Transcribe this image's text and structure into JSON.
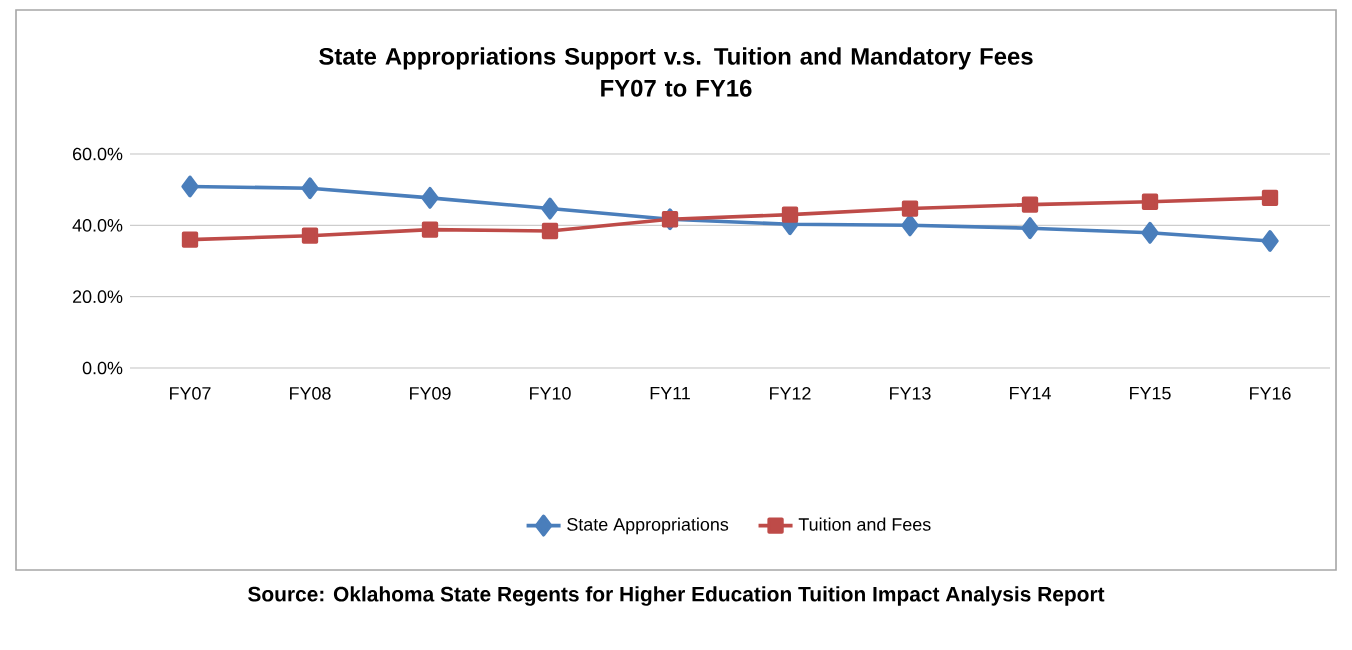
{
  "chart_data": {
    "type": "line",
    "title": "State Appropriations Support v.s. Tuition and Mandatory Fees\nFY07 to FY16",
    "categories": [
      "FY07",
      "FY08",
      "FY09",
      "FY10",
      "FY11",
      "FY12",
      "FY13",
      "FY14",
      "FY15",
      "FY16"
    ],
    "series": [
      {
        "name": "State Appropriations",
        "color": "#4a7ebb",
        "marker": "diamond",
        "values": [
          50.9,
          50.4,
          47.7,
          44.7,
          41.7,
          40.3,
          40.0,
          39.2,
          37.9,
          35.6
        ]
      },
      {
        "name": "Tuition and Fees",
        "color": "#be4b48",
        "marker": "square",
        "values": [
          36.0,
          37.1,
          38.8,
          38.4,
          41.7,
          43.0,
          44.7,
          45.8,
          46.6,
          47.7
        ]
      }
    ],
    "ylim": [
      0,
      60
    ],
    "yticks": [
      {
        "value": 0,
        "label": "0.0%"
      },
      {
        "value": 20,
        "label": "20.0%"
      },
      {
        "value": 40,
        "label": "40.0%"
      },
      {
        "value": 60,
        "label": "60.0%"
      }
    ],
    "grid": "y",
    "legend": "bottom",
    "line_style": "solid",
    "annotations": [
      "Source: Oklahoma State Regents for Higher Education Tuition Impact Analysis Report"
    ]
  }
}
